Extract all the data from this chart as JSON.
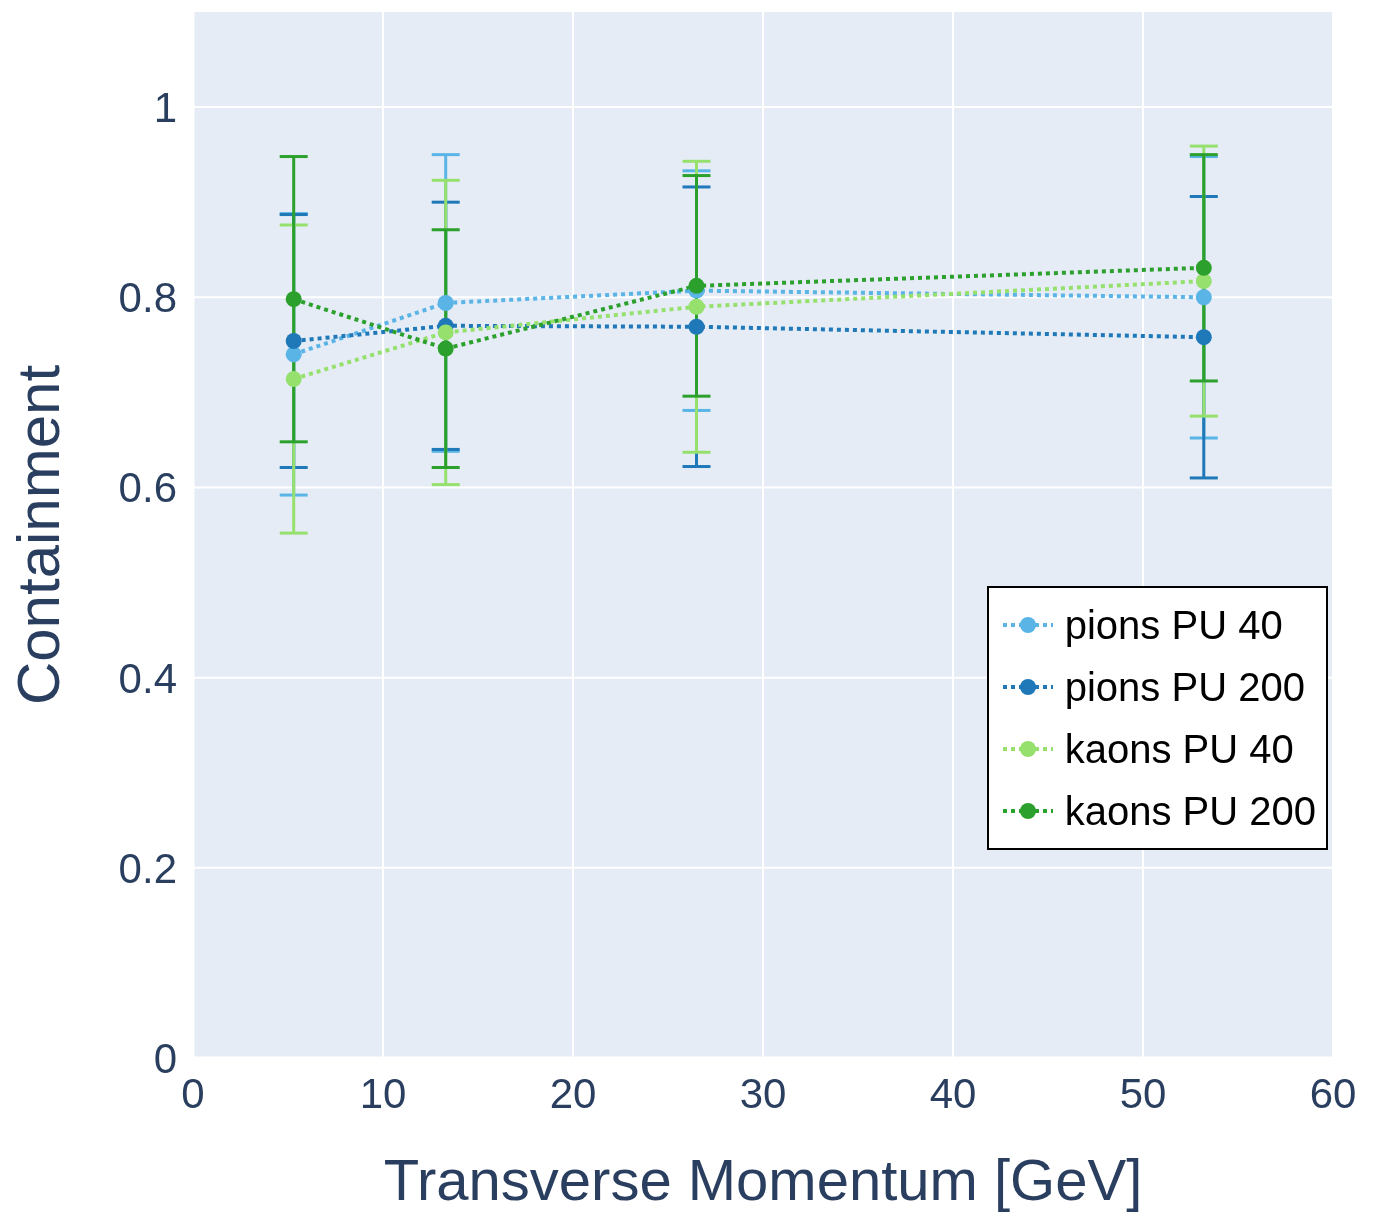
{
  "chart_data": {
    "type": "line",
    "xlabel": "Transverse Momentum [GeV]",
    "ylabel": "Containment",
    "x": [
      5.3,
      13.3,
      26.5,
      53.2
    ],
    "series": [
      {
        "name": "pions PU 40",
        "color": "#5ab4e5",
        "values": [
          0.74,
          0.794,
          0.807,
          0.8
        ],
        "errors": [
          0.148,
          0.156,
          0.126,
          0.148
        ]
      },
      {
        "name": "pions PU 200",
        "color": "#1f78b8",
        "values": [
          0.754,
          0.77,
          0.769,
          0.758
        ],
        "errors": [
          0.133,
          0.13,
          0.147,
          0.148
        ]
      },
      {
        "name": "kaons PU 40",
        "color": "#96e06e",
        "values": [
          0.714,
          0.763,
          0.79,
          0.817
        ],
        "errors": [
          0.162,
          0.16,
          0.153,
          0.142
        ]
      },
      {
        "name": "kaons PU 200",
        "color": "#2ca02c",
        "values": [
          0.798,
          0.746,
          0.812,
          0.831
        ],
        "errors": [
          0.15,
          0.125,
          0.116,
          0.119
        ]
      }
    ],
    "xlim": [
      0,
      60
    ],
    "xticks": [
      0,
      10,
      20,
      30,
      40,
      50,
      60
    ],
    "ylim": [
      0,
      1.1
    ],
    "yticks": [
      0,
      0.2,
      0.4,
      0.6,
      0.8,
      1
    ],
    "grid": true,
    "legend": "right",
    "marker": "circle",
    "line_style": "dotted"
  }
}
